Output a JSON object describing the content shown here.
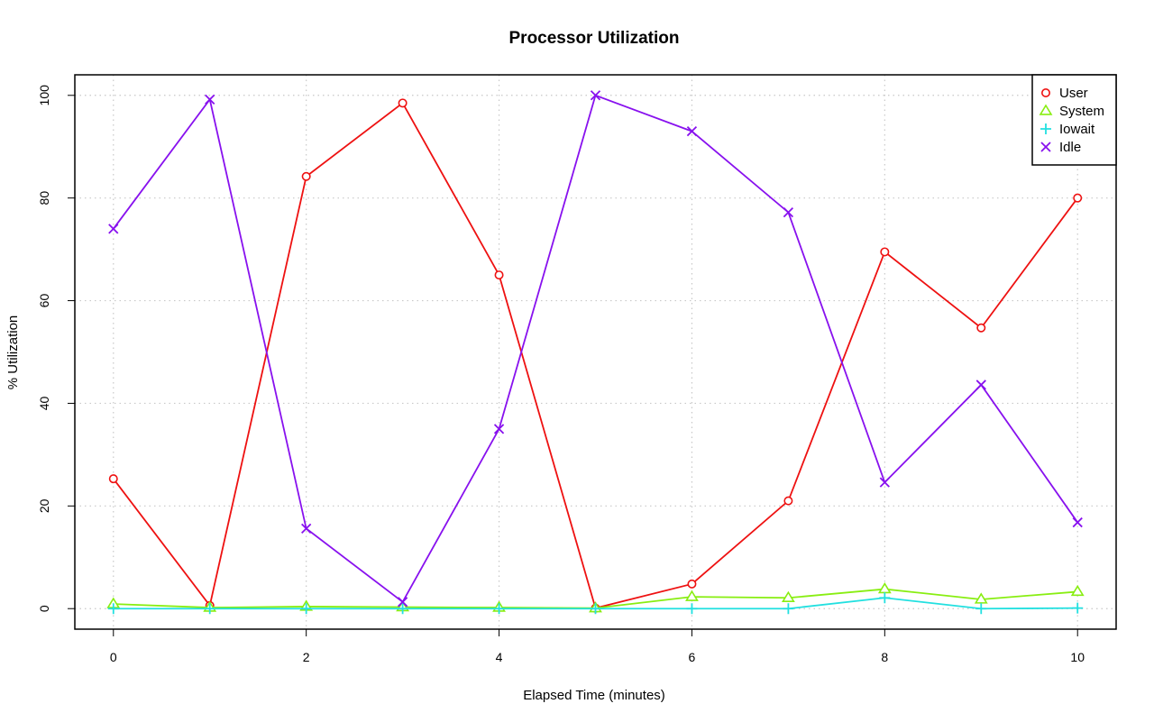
{
  "chart_data": {
    "type": "line",
    "title": "Processor Utilization",
    "xlabel": "Elapsed Time (minutes)",
    "ylabel": "% Utilization",
    "xlim": [
      -0.4,
      10.4
    ],
    "ylim": [
      -4,
      104
    ],
    "x_ticks": [
      "0",
      "2",
      "4",
      "6",
      "8",
      "10"
    ],
    "y_ticks": [
      "0",
      "20",
      "40",
      "60",
      "80",
      "100"
    ],
    "grid": true,
    "legend_position": "top-right",
    "x": [
      0,
      1,
      2,
      3,
      4,
      5,
      6,
      7,
      8,
      9,
      10
    ],
    "series": [
      {
        "name": "User",
        "color": "#ee1111",
        "marker": "circle",
        "values": [
          25.3,
          0.6,
          84.2,
          98.5,
          65.0,
          0.1,
          4.8,
          21.0,
          69.5,
          54.7,
          80.0
        ]
      },
      {
        "name": "System",
        "color": "#88ee11",
        "marker": "triangle",
        "values": [
          0.9,
          0.2,
          0.4,
          0.3,
          0.2,
          0.1,
          2.3,
          2.1,
          3.8,
          1.8,
          3.3
        ]
      },
      {
        "name": "Iowait",
        "color": "#22e0e0",
        "marker": "plus",
        "values": [
          0.0,
          0.0,
          0.0,
          0.0,
          0.0,
          0.0,
          0.0,
          0.0,
          2.1,
          0.0,
          0.1
        ]
      },
      {
        "name": "Idle",
        "color": "#8811ee",
        "marker": "x",
        "values": [
          74.0,
          99.2,
          15.6,
          1.3,
          35.0,
          100.0,
          93.0,
          77.2,
          24.6,
          43.6,
          16.8
        ]
      }
    ]
  }
}
